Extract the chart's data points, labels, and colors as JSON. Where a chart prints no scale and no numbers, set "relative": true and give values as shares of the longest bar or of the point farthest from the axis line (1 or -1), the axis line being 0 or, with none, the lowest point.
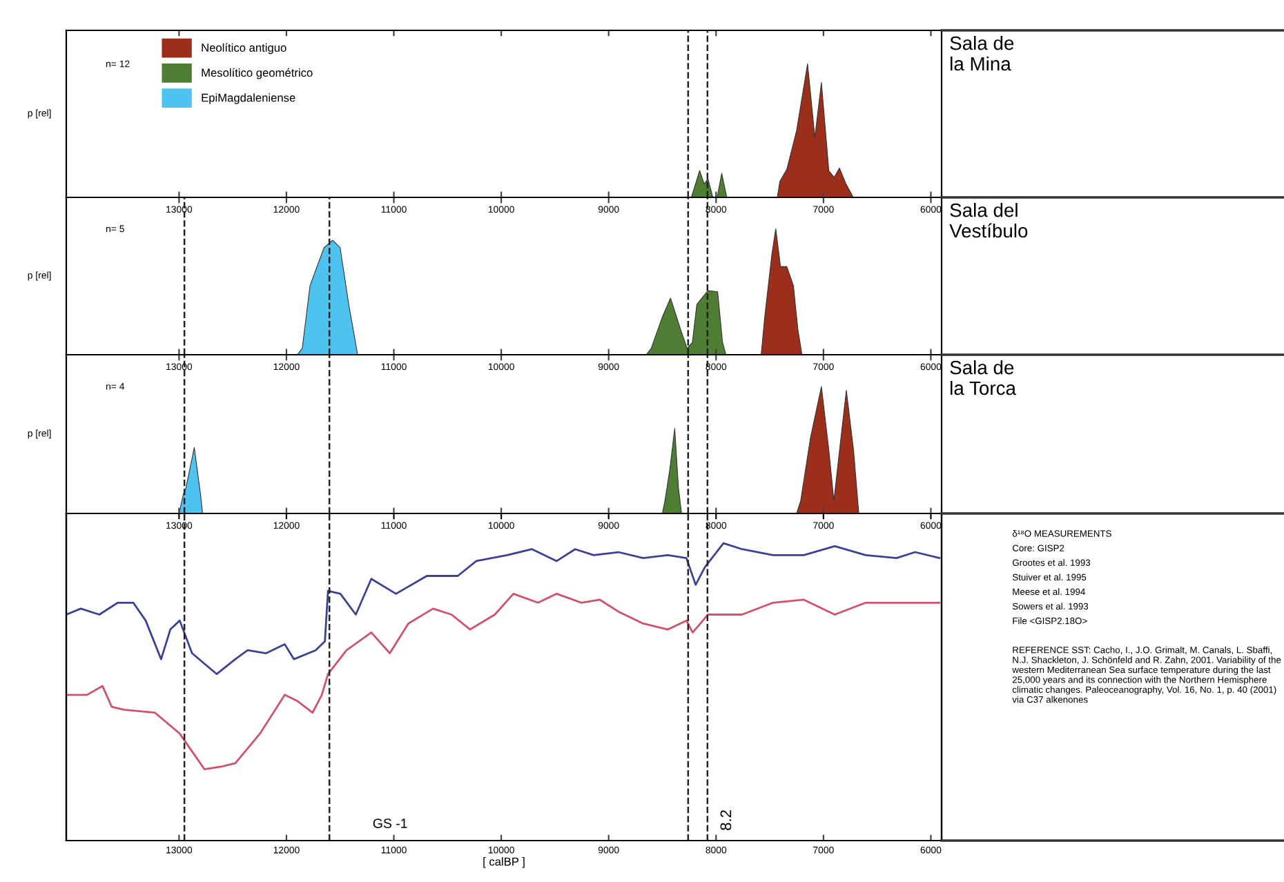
{
  "chart_data": [
    {
      "type": "area",
      "relative": true,
      "title": "Sala de\nla Mina",
      "ylabel": "p [rel]",
      "xlim": [
        14050,
        5900
      ],
      "xticks": [
        13000,
        12000,
        11000,
        10000,
        9000,
        8000,
        7000,
        6000
      ],
      "tick_labels": false,
      "legend": "top left",
      "annotations": [
        "n= 12"
      ],
      "ref_lines": [
        {
          "axis": "x",
          "value": 8260,
          "line_style": "dashed",
          "color": "#222222"
        },
        {
          "axis": "x",
          "value": 8080,
          "line_style": "dashed",
          "color": "#222222"
        }
      ],
      "series": [
        {
          "name": "Neolítico antiguo",
          "color": "#9b2f1c",
          "x": [
            7430,
            7406,
            7341,
            7250,
            7148,
            7080,
            7019,
            6950,
            6900,
            6851,
            6790,
            6722
          ],
          "values": [
            0,
            0.12,
            0.21,
            0.5,
            1.0,
            0.45,
            0.86,
            0.2,
            0.15,
            0.22,
            0.1,
            0
          ]
        },
        {
          "name": "Mesolítico geométrico",
          "color": "#4e7d33",
          "x": [
            8230,
            8153,
            8110,
            8076,
            8030,
            7990,
            7947,
            7900
          ],
          "values": [
            0,
            0.2,
            0.1,
            0.14,
            0,
            0,
            0.18,
            0
          ]
        }
      ]
    },
    {
      "type": "area",
      "relative": true,
      "title": "Sala del\nVestíbulo",
      "ylabel": "p [rel]",
      "xlim": [
        14050,
        5900
      ],
      "xticks": [
        13000,
        12000,
        11000,
        10000,
        9000,
        8000,
        7000,
        6000
      ],
      "tick_labels": "x",
      "annotations": [
        "n= 5"
      ],
      "ref_lines": [
        {
          "axis": "x",
          "value": 12950,
          "line_style": "dashed",
          "color": "#222222"
        },
        {
          "axis": "x",
          "value": 11600,
          "line_style": "dashed",
          "color": "#222222"
        },
        {
          "axis": "x",
          "value": 8260,
          "line_style": "dashed",
          "color": "#222222"
        },
        {
          "axis": "x",
          "value": 8080,
          "line_style": "dashed",
          "color": "#222222"
        }
      ],
      "series": [
        {
          "name": "Neolítico antiguo",
          "color": "#9b2f1c",
          "x": [
            7580,
            7547,
            7480,
            7444,
            7400,
            7341,
            7280,
            7238,
            7200
          ],
          "values": [
            0,
            0.3,
            0.8,
            1.0,
            0.7,
            0.7,
            0.55,
            0.2,
            0
          ]
        },
        {
          "name": "Mesolítico geométrico",
          "color": "#4e7d33",
          "x": [
            8650,
            8604,
            8500,
            8424,
            8330,
            8269,
            8220,
            8179,
            8076,
            7985,
            7940,
            7908
          ],
          "values": [
            0,
            0.05,
            0.3,
            0.45,
            0.2,
            0.05,
            0.1,
            0.4,
            0.51,
            0.5,
            0.1,
            0
          ]
        },
        {
          "name": "EpiMagdaleniense",
          "color": "#4fc3f0",
          "x": [
            11900,
            11853,
            11780,
            11737,
            11650,
            11569,
            11500,
            11420,
            11337
          ],
          "values": [
            0,
            0.05,
            0.55,
            0.65,
            0.85,
            0.91,
            0.85,
            0.4,
            0
          ]
        }
      ]
    },
    {
      "type": "area",
      "relative": true,
      "title": "Sala de\nla Torca",
      "ylabel": "p [rel]",
      "xlim": [
        14050,
        5900
      ],
      "xticks": [
        13000,
        12000,
        11000,
        10000,
        9000,
        8000,
        7000,
        6000
      ],
      "tick_labels": "x",
      "annotations": [
        "n= 4"
      ],
      "ref_lines": [
        {
          "axis": "x",
          "value": 12950,
          "line_style": "dashed",
          "color": "#222222"
        },
        {
          "axis": "x",
          "value": 11600,
          "line_style": "dashed",
          "color": "#222222"
        },
        {
          "axis": "x",
          "value": 8260,
          "line_style": "dashed",
          "color": "#222222"
        },
        {
          "axis": "x",
          "value": 8080,
          "line_style": "dashed",
          "color": "#222222"
        }
      ],
      "series": [
        {
          "name": "Neolítico antiguo",
          "color": "#9b2f1c",
          "x": [
            7250,
            7212,
            7120,
            7019,
            6950,
            6903,
            6850,
            6787,
            6720,
            6671
          ],
          "values": [
            0,
            0.1,
            0.6,
            1.0,
            0.5,
            0.1,
            0.5,
            0.97,
            0.5,
            0
          ]
        },
        {
          "name": "Mesolítico geométrico",
          "color": "#4e7d33",
          "x": [
            8500,
            8476,
            8430,
            8385,
            8350,
            8321
          ],
          "values": [
            0,
            0.1,
            0.35,
            0.67,
            0.2,
            0
          ]
        },
        {
          "name": "EpiMagdaleniense",
          "color": "#4fc3f0",
          "x": [
            13000,
            12960,
            12936,
            12858,
            12800,
            12781
          ],
          "values": [
            0,
            0.15,
            0.2,
            0.52,
            0.15,
            0
          ]
        }
      ]
    },
    {
      "type": "line",
      "relative": true,
      "xlabel": "[ calBP ]",
      "xlim": [
        14050,
        5900
      ],
      "xticks": [
        13000,
        12000,
        11000,
        10000,
        9000,
        8000,
        7000,
        6000
      ],
      "x2lim": [
        14050,
        5900
      ],
      "x2ticks": [
        13000,
        12000,
        11000,
        10000,
        9000,
        8000,
        7000,
        6000
      ],
      "tick_labels": "x",
      "annotations": [
        "GS -1",
        "8.2",
        "δ¹⁸O MEASUREMENTS",
        "Core: GISP2",
        "Grootes et al. 1993",
        "Stuiver et al. 1995",
        "Meese et al. 1994",
        "Sowers et al. 1993",
        "File <GISP2.18O>",
        "REFERENCE SST: Cacho, I., J.O. Grimalt, M. Canals, L. Sbaffi, N.J. Shackleton, J. Schönfeld and R. Zahn, 2001. Variability of the western Mediterranean Sea surface temperature during the last 25,000 years and its connection with the Northern Hemisphere climatic changes. Paleoceanography, Vol. 16, No. 1, p. 40 (2001) via C37 alkenones"
      ],
      "ref_lines": [
        {
          "axis": "x",
          "value": 12950,
          "line_style": "dashed",
          "color": "#222222"
        },
        {
          "axis": "x",
          "value": 11600,
          "line_style": "dashed",
          "color": "#222222"
        },
        {
          "axis": "x",
          "value": 8260,
          "line_style": "dashed",
          "color": "#222222"
        },
        {
          "axis": "x",
          "value": 8080,
          "line_style": "dashed",
          "color": "#222222"
        }
      ],
      "series": [
        {
          "color": "#3b4196",
          "x": [
            14050,
            13915,
            13742,
            13570,
            13426,
            13311,
            13167,
            13081,
            12994,
            12879,
            12649,
            12476,
            12361,
            12189,
            12016,
            11930,
            11728,
            11642,
            11613,
            11498,
            11354,
            11210,
            10980,
            10693,
            10405,
            10232,
            9945,
            9714,
            9484,
            9312,
            9139,
            8909,
            8679,
            8449,
            8276,
            8190,
            8103,
            7931,
            7758,
            7470,
            7183,
            6895,
            6607,
            6319,
            6147,
            5920
          ],
          "values": [
            0.76,
            0.78,
            0.76,
            0.8,
            0.8,
            0.74,
            0.61,
            0.71,
            0.74,
            0.63,
            0.56,
            0.61,
            0.64,
            0.63,
            0.66,
            0.61,
            0.64,
            0.67,
            0.84,
            0.83,
            0.76,
            0.88,
            0.83,
            0.89,
            0.89,
            0.94,
            0.96,
            0.98,
            0.94,
            0.98,
            0.96,
            0.97,
            0.95,
            0.96,
            0.95,
            0.86,
            0.92,
            1.0,
            0.98,
            0.96,
            0.96,
            0.99,
            0.96,
            0.95,
            0.97,
            0.95
          ]
        },
        {
          "color": "#d2506a",
          "x": [
            14050,
            13857,
            13713,
            13627,
            13512,
            13224,
            12994,
            12764,
            12591,
            12476,
            12246,
            12016,
            11901,
            11757,
            11671,
            11613,
            11441,
            11210,
            11038,
            10865,
            10635,
            10463,
            10290,
            10060,
            9887,
            9657,
            9484,
            9254,
            9082,
            8909,
            8679,
            8449,
            8276,
            8218,
            8075,
            7758,
            7470,
            7183,
            6895,
            6607,
            6319,
            6032,
            5920
          ],
          "values": [
            0.49,
            0.49,
            0.52,
            0.45,
            0.44,
            0.43,
            0.36,
            0.24,
            0.25,
            0.26,
            0.36,
            0.49,
            0.47,
            0.43,
            0.49,
            0.56,
            0.64,
            0.7,
            0.63,
            0.73,
            0.78,
            0.76,
            0.71,
            0.76,
            0.83,
            0.8,
            0.83,
            0.8,
            0.81,
            0.77,
            0.73,
            0.71,
            0.74,
            0.7,
            0.76,
            0.76,
            0.8,
            0.81,
            0.76,
            0.8,
            0.8,
            0.8,
            0.8
          ]
        }
      ]
    }
  ]
}
